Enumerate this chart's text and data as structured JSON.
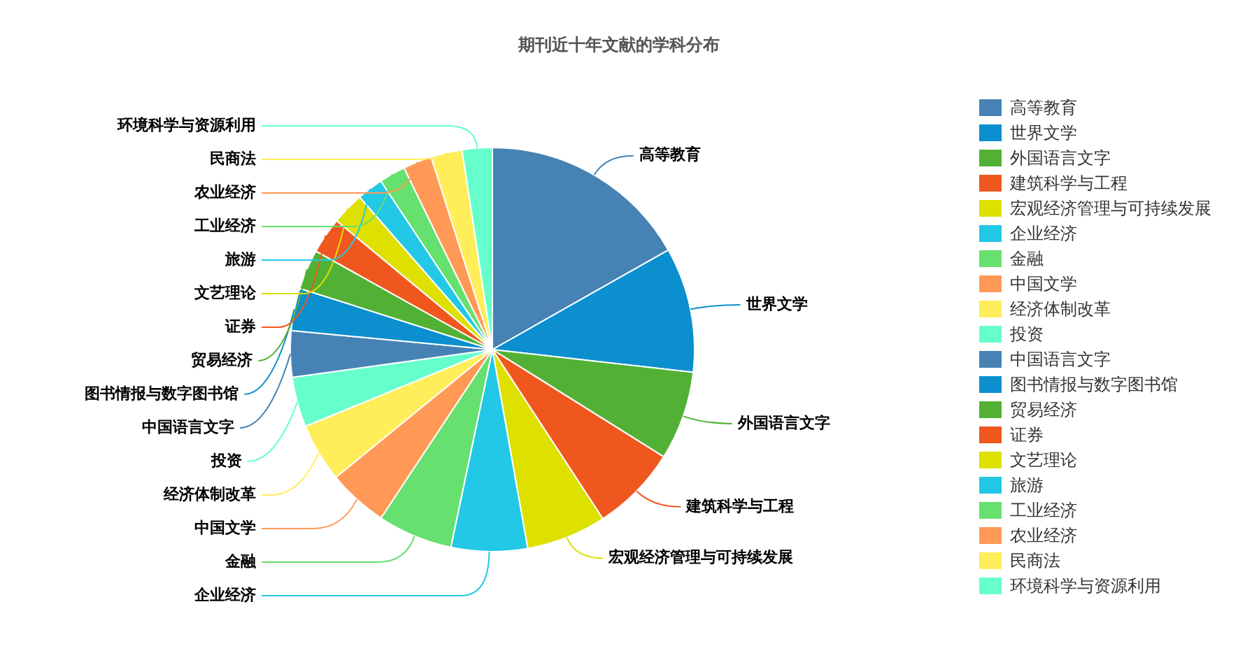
{
  "chart_data": {
    "type": "pie",
    "title": "期刊近十年文献的学科分布",
    "categories": [
      "高等教育",
      "世界文学",
      "外国语言文字",
      "建筑科学与工程",
      "宏观经济管理与可持续发展",
      "企业经济",
      "金融",
      "中国文学",
      "经济体制改革",
      "投资",
      "中国语言文字",
      "图书情报与数字图书馆",
      "贸易经济",
      "证券",
      "文艺理论",
      "旅游",
      "工业经济",
      "农业经济",
      "民商法",
      "环境科学与资源利用"
    ],
    "values": [
      16.8,
      10.0,
      7.1,
      6.9,
      6.4,
      6.1,
      6.0,
      4.8,
      4.7,
      4.0,
      3.7,
      3.4,
      3.2,
      2.9,
      2.6,
      2.1,
      2.1,
      2.3,
      2.5,
      2.4
    ],
    "colors": [
      "#4682b4",
      "#0b8fcf",
      "#52b135",
      "#f0571f",
      "#dee000",
      "#22c8e5",
      "#66e06f",
      "#ff9955",
      "#ffee5a",
      "#66ffcc",
      "#4682b4",
      "#0b8fcf",
      "#52b135",
      "#f0571f",
      "#dee000",
      "#22c8e5",
      "#66e06f",
      "#ff9955",
      "#ffee5a",
      "#66ffcc"
    ],
    "legend": "right"
  }
}
